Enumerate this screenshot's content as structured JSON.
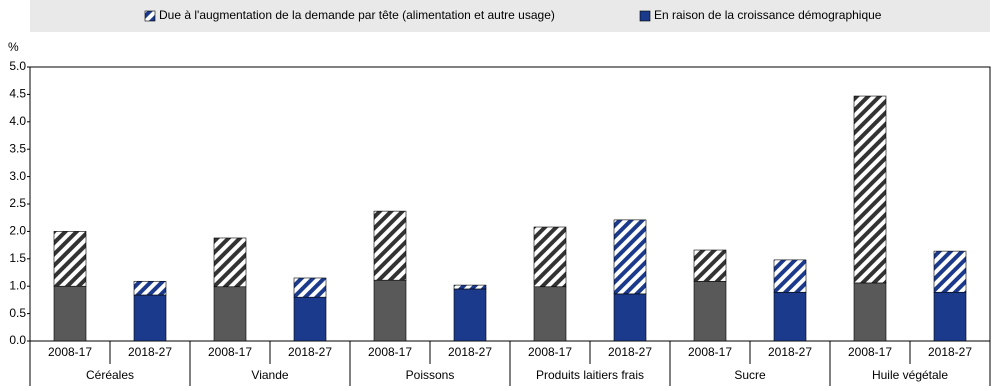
{
  "chart_data": {
    "type": "stacked_bar",
    "y_label": "%",
    "categories": [
      "2008-17",
      "2018-27",
      "2008-17",
      "2018-27",
      "2008-17",
      "2018-27",
      "2008-17",
      "2018-27",
      "2008-17",
      "2018-27",
      "2008-17",
      "2018-27"
    ],
    "groups": [
      "Céréales",
      "Viande",
      "Poissons",
      "Produits laitiers frais",
      "Sucre",
      "Huile végétale"
    ],
    "series": [
      {
        "name": "En raison de la croissance démographique",
        "colors": [
          "#595959",
          "#1c3a8c"
        ],
        "hatched": false,
        "values": [
          1.0,
          0.84,
          0.99,
          0.8,
          1.11,
          0.95,
          0.99,
          0.86,
          1.09,
          0.89,
          1.06,
          0.89
        ]
      },
      {
        "name": "Due à l'augmentation de la demande par tête (alimentation et autre usage)",
        "colors": [
          "#333333",
          "#1c3a8c"
        ],
        "hatched": true,
        "values": [
          1.0,
          0.25,
          0.89,
          0.35,
          1.26,
          0.07,
          1.09,
          1.35,
          0.57,
          0.59,
          3.41,
          0.75
        ]
      }
    ],
    "legend_order": [
      1,
      0
    ],
    "ylim": [
      0,
      5
    ],
    "yticks": [
      {
        "value": 0,
        "label": "0.0"
      },
      0.5,
      {
        "value": 1,
        "label": "1.0"
      },
      1.5,
      {
        "value": 2,
        "label": "2.0"
      },
      2.5,
      {
        "value": 3,
        "label": "3.0"
      },
      3.5,
      {
        "value": 4,
        "label": "4.0"
      },
      4.5,
      {
        "value": 5,
        "label": "5.0"
      }
    ]
  }
}
